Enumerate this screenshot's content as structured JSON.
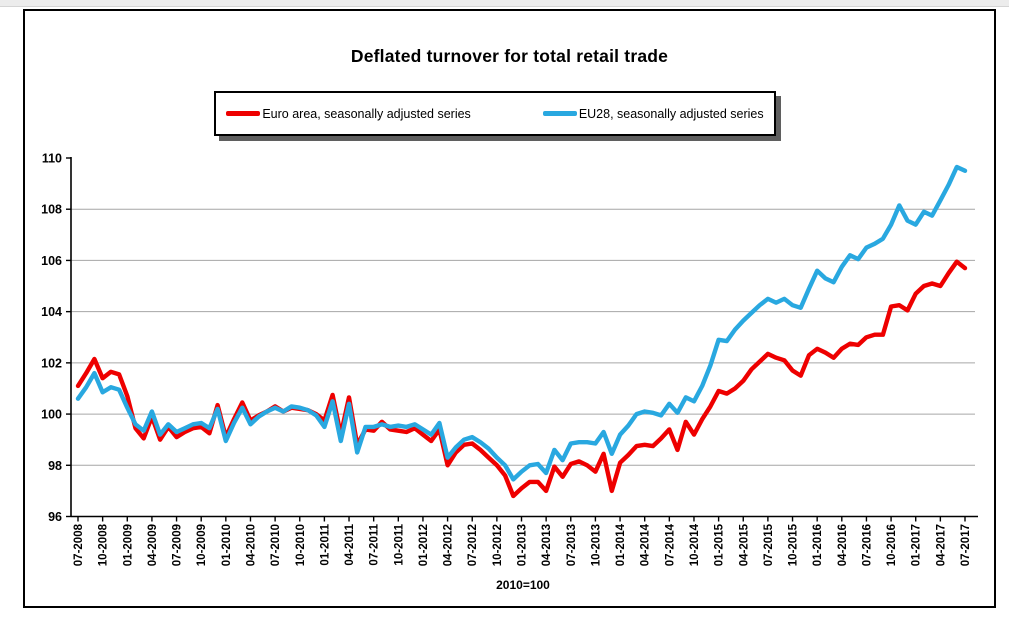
{
  "chart_data": {
    "type": "line",
    "title": "Deflated turnover for total retail trade",
    "note": "2010=100",
    "xlabel": "",
    "ylabel": "",
    "ylim": [
      96,
      110
    ],
    "yticks": [
      96,
      98,
      100,
      102,
      104,
      106,
      108,
      110
    ],
    "grid": "horizontal",
    "legend_position": "top",
    "x_tick_labels": [
      "07-2008",
      "10-2008",
      "01-2009",
      "04-2009",
      "07-2009",
      "10-2009",
      "01-2010",
      "04-2010",
      "07-2010",
      "10-2010",
      "01-2011",
      "04-2011",
      "07-2011",
      "10-2011",
      "01-2012",
      "04-2012",
      "07-2012",
      "10-2012",
      "01-2013",
      "04-2013",
      "07-2013",
      "10-2013",
      "01-2014",
      "04-2014",
      "07-2014",
      "10-2014",
      "01-2015",
      "04-2015",
      "07-2015",
      "10-2015",
      "01-2016",
      "04-2016",
      "07-2016",
      "10-2016",
      "01-2017",
      "04-2017",
      "07-2017"
    ],
    "categories": [
      "07-2008",
      "08-2008",
      "09-2008",
      "10-2008",
      "11-2008",
      "12-2008",
      "01-2009",
      "02-2009",
      "03-2009",
      "04-2009",
      "05-2009",
      "06-2009",
      "07-2009",
      "08-2009",
      "09-2009",
      "10-2009",
      "11-2009",
      "12-2009",
      "01-2010",
      "02-2010",
      "03-2010",
      "04-2010",
      "05-2010",
      "06-2010",
      "07-2010",
      "08-2010",
      "09-2010",
      "10-2010",
      "11-2010",
      "12-2010",
      "01-2011",
      "02-2011",
      "03-2011",
      "04-2011",
      "05-2011",
      "06-2011",
      "07-2011",
      "08-2011",
      "09-2011",
      "10-2011",
      "11-2011",
      "12-2011",
      "01-2012",
      "02-2012",
      "03-2012",
      "04-2012",
      "05-2012",
      "06-2012",
      "07-2012",
      "08-2012",
      "09-2012",
      "10-2012",
      "11-2012",
      "12-2012",
      "01-2013",
      "02-2013",
      "03-2013",
      "04-2013",
      "05-2013",
      "06-2013",
      "07-2013",
      "08-2013",
      "09-2013",
      "10-2013",
      "11-2013",
      "12-2013",
      "01-2014",
      "02-2014",
      "03-2014",
      "04-2014",
      "05-2014",
      "06-2014",
      "07-2014",
      "08-2014",
      "09-2014",
      "10-2014",
      "11-2014",
      "12-2014",
      "01-2015",
      "02-2015",
      "03-2015",
      "04-2015",
      "05-2015",
      "06-2015",
      "07-2015",
      "08-2015",
      "09-2015",
      "10-2015",
      "11-2015",
      "12-2015",
      "01-2016",
      "02-2016",
      "03-2016",
      "04-2016",
      "05-2016",
      "06-2016",
      "07-2016",
      "08-2016",
      "09-2016",
      "10-2016",
      "11-2016",
      "12-2016",
      "01-2017",
      "02-2017",
      "03-2017",
      "04-2017",
      "05-2017",
      "06-2017",
      "07-2017"
    ],
    "series": [
      {
        "name": "Euro area, seasonally adjusted series",
        "color": "#ee0000",
        "values": [
          101.1,
          101.6,
          102.15,
          101.4,
          101.65,
          101.55,
          100.7,
          99.45,
          99.05,
          99.9,
          99.0,
          99.5,
          99.1,
          99.3,
          99.45,
          99.5,
          99.25,
          100.35,
          99.1,
          99.8,
          100.45,
          99.75,
          99.95,
          100.1,
          100.3,
          100.1,
          100.25,
          100.2,
          100.15,
          100.0,
          99.75,
          100.75,
          99.2,
          100.65,
          98.8,
          99.4,
          99.35,
          99.7,
          99.4,
          99.35,
          99.3,
          99.45,
          99.2,
          98.95,
          99.4,
          98.0,
          98.5,
          98.8,
          98.85,
          98.6,
          98.3,
          98.0,
          97.6,
          96.8,
          97.1,
          97.35,
          97.35,
          97.0,
          97.95,
          97.55,
          98.05,
          98.15,
          98.0,
          97.75,
          98.45,
          97.0,
          98.1,
          98.4,
          98.75,
          98.8,
          98.75,
          99.05,
          99.4,
          98.6,
          99.7,
          99.2,
          99.8,
          100.3,
          100.9,
          100.8,
          101.0,
          101.3,
          101.75,
          102.05,
          102.35,
          102.2,
          102.1,
          101.7,
          101.5,
          102.3,
          102.55,
          102.4,
          102.2,
          102.55,
          102.75,
          102.7,
          103.0,
          103.1,
          103.1,
          104.2,
          104.25,
          104.05,
          104.7,
          105.0,
          105.1,
          105.0,
          105.5,
          105.95,
          105.7
        ]
      },
      {
        "name": "EU28, seasonally adjusted series",
        "color": "#29a8e0",
        "values": [
          100.6,
          101.05,
          101.6,
          100.85,
          101.05,
          100.95,
          100.25,
          99.6,
          99.35,
          100.1,
          99.2,
          99.6,
          99.3,
          99.45,
          99.6,
          99.65,
          99.45,
          100.2,
          98.95,
          99.65,
          100.25,
          99.6,
          99.9,
          100.1,
          100.25,
          100.1,
          100.3,
          100.25,
          100.15,
          99.95,
          99.5,
          100.5,
          98.95,
          100.4,
          98.5,
          99.5,
          99.5,
          99.6,
          99.5,
          99.55,
          99.5,
          99.6,
          99.4,
          99.2,
          99.65,
          98.3,
          98.7,
          99.0,
          99.1,
          98.9,
          98.65,
          98.3,
          98.0,
          97.45,
          97.75,
          98.0,
          98.05,
          97.7,
          98.6,
          98.2,
          98.85,
          98.9,
          98.9,
          98.85,
          99.3,
          98.45,
          99.2,
          99.55,
          100.0,
          100.1,
          100.05,
          99.95,
          100.4,
          100.05,
          100.65,
          100.5,
          101.1,
          101.9,
          102.9,
          102.85,
          103.3,
          103.65,
          103.95,
          104.25,
          104.5,
          104.35,
          104.5,
          104.25,
          104.15,
          104.9,
          105.6,
          105.3,
          105.15,
          105.75,
          106.2,
          106.05,
          106.5,
          106.65,
          106.85,
          107.4,
          108.15,
          107.55,
          107.4,
          107.9,
          107.75,
          108.35,
          108.95,
          109.65,
          109.5
        ]
      }
    ],
    "colors": {
      "axis": "#000000",
      "gridline": "#a6a6a6"
    }
  }
}
